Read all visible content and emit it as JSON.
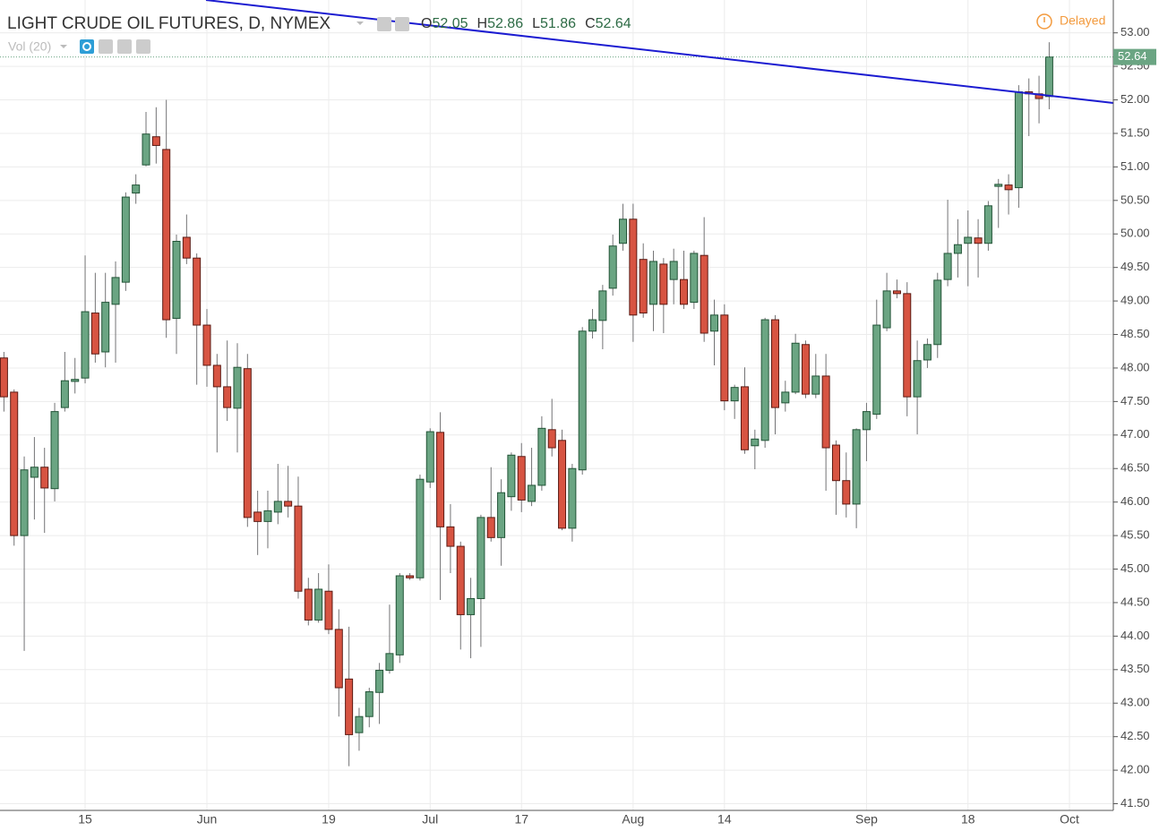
{
  "chart_data": {
    "type": "candlestick",
    "title": "LIGHT CRUDE OIL FUTURES, D, NYMEX",
    "ohlc_labels": [
      "O",
      "H",
      "L",
      "C"
    ],
    "indicator": "Vol (20)",
    "status": "Delayed",
    "categories": [
      null,
      null,
      null,
      null,
      null,
      null,
      null,
      null,
      "15",
      null,
      null,
      null,
      null,
      null,
      null,
      null,
      null,
      null,
      null,
      null,
      "Jun",
      null,
      null,
      null,
      null,
      null,
      null,
      null,
      null,
      null,
      null,
      null,
      "19",
      null,
      null,
      null,
      null,
      null,
      null,
      null,
      null,
      null,
      "Jul",
      null,
      null,
      null,
      null,
      null,
      null,
      null,
      null,
      "17",
      null,
      null,
      null,
      null,
      null,
      null,
      null,
      null,
      null,
      null,
      "Aug",
      null,
      null,
      null,
      null,
      null,
      null,
      null,
      null,
      "14",
      null,
      null,
      null,
      null,
      null,
      null,
      null,
      null,
      null,
      null,
      null,
      null,
      null,
      "Sep",
      null,
      null,
      null,
      null,
      null,
      null,
      null,
      null,
      null,
      "18",
      null,
      null,
      null,
      null,
      null,
      null,
      null,
      null,
      null,
      "Oct"
    ],
    "open": [
      48.15,
      47.64,
      45.5,
      46.37,
      46.52,
      46.2,
      47.41,
      47.8,
      47.85,
      48.82,
      48.24,
      48.95,
      49.28,
      50.61,
      51.03,
      51.45,
      51.26,
      48.74,
      49.95,
      49.64,
      48.64,
      48.04,
      47.72,
      47.4,
      47.99,
      45.85,
      45.71,
      45.85,
      46.01,
      45.94,
      44.7,
      44.24,
      44.67,
      44.1,
      43.36,
      42.56,
      42.8,
      43.16,
      43.49,
      43.72,
      44.9,
      44.87,
      46.3,
      47.04,
      45.63,
      45.34,
      44.32,
      44.56,
      45.77,
      45.47,
      46.08,
      46.68,
      46.01,
      46.25,
      47.08,
      46.92,
      45.61,
      46.48,
      48.55,
      48.71,
      49.19,
      49.86,
      50.22,
      49.62,
      48.95,
      49.55,
      49.32,
      49.32,
      48.98,
      49.68,
      48.55,
      48.79,
      47.51,
      47.72,
      46.84,
      46.92,
      48.72,
      47.48,
      47.64,
      48.35,
      47.61,
      47.88,
      46.85,
      46.32,
      45.97,
      47.08,
      47.31,
      48.6,
      49.15,
      49.11,
      47.57,
      48.12,
      48.35,
      49.32,
      49.71,
      49.86,
      49.94,
      49.86,
      50.71,
      50.73,
      50.69,
      52.12,
      52.09,
      52.05,
      null,
      null
    ],
    "high": [
      48.24,
      47.68,
      46.68,
      46.97,
      46.81,
      47.48,
      48.24,
      48.15,
      49.68,
      49.42,
      49.42,
      49.59,
      50.62,
      50.89,
      51.82,
      51.89,
      52.0,
      49.99,
      50.29,
      49.71,
      48.88,
      48.21,
      48.41,
      48.37,
      48.21,
      46.17,
      46.17,
      46.57,
      46.54,
      46.38,
      44.87,
      44.94,
      45.07,
      44.4,
      44.14,
      42.93,
      43.23,
      43.6,
      44.47,
      44.94,
      44.94,
      46.41,
      47.1,
      47.34,
      45.97,
      45.41,
      44.87,
      45.81,
      46.52,
      46.34,
      46.74,
      46.88,
      46.81,
      47.28,
      47.54,
      47.08,
      46.57,
      48.61,
      48.88,
      49.24,
      49.99,
      50.45,
      50.45,
      49.86,
      49.75,
      49.64,
      49.78,
      49.75,
      49.75,
      50.25,
      49.02,
      48.95,
      47.75,
      48.01,
      47.08,
      48.75,
      48.79,
      47.81,
      48.51,
      48.41,
      48.21,
      48.21,
      46.92,
      46.74,
      47.1,
      47.48,
      49.02,
      49.42,
      49.32,
      49.28,
      48.41,
      48.44,
      49.42,
      50.51,
      50.22,
      50.35,
      50.22,
      50.49,
      50.82,
      50.89,
      52.22,
      52.32,
      52.36,
      52.86,
      null,
      null
    ],
    "low": [
      47.35,
      45.35,
      43.78,
      45.74,
      45.54,
      46.01,
      47.35,
      47.62,
      47.77,
      48.08,
      48.01,
      48.08,
      49.15,
      50.45,
      51.01,
      51.05,
      48.45,
      48.21,
      49.55,
      47.75,
      47.72,
      46.74,
      47.21,
      46.74,
      45.63,
      45.21,
      45.31,
      45.67,
      45.77,
      44.56,
      44.16,
      44.2,
      44.03,
      42.8,
      42.06,
      42.29,
      42.64,
      42.69,
      43.44,
      43.6,
      44.84,
      44.83,
      46.21,
      44.54,
      44.94,
      43.8,
      43.67,
      43.84,
      45.41,
      45.05,
      45.87,
      45.85,
      45.94,
      46.17,
      46.68,
      45.58,
      45.41,
      46.41,
      48.44,
      48.28,
      49.08,
      49.75,
      48.39,
      48.75,
      48.55,
      48.52,
      48.95,
      48.88,
      48.88,
      48.39,
      48.04,
      47.37,
      47.24,
      46.72,
      46.49,
      46.81,
      47.01,
      47.35,
      47.61,
      47.55,
      47.55,
      46.17,
      45.81,
      45.77,
      45.61,
      46.61,
      47.24,
      48.55,
      49.04,
      47.28,
      47.01,
      48.0,
      48.15,
      49.22,
      49.35,
      49.22,
      49.35,
      49.75,
      50.09,
      50.29,
      50.39,
      51.46,
      51.65,
      51.86,
      null,
      null
    ],
    "close": [
      47.57,
      45.5,
      46.48,
      46.52,
      46.21,
      47.35,
      47.81,
      47.83,
      48.84,
      48.21,
      48.98,
      49.35,
      50.55,
      50.73,
      51.49,
      51.32,
      48.72,
      49.89,
      49.64,
      48.64,
      48.04,
      47.72,
      47.41,
      48.01,
      45.77,
      45.71,
      45.87,
      46.01,
      45.94,
      44.67,
      44.24,
      44.7,
      44.1,
      43.23,
      42.53,
      42.8,
      43.17,
      43.49,
      43.74,
      44.9,
      44.87,
      46.34,
      47.05,
      45.63,
      45.34,
      44.32,
      44.56,
      45.77,
      45.47,
      46.14,
      46.7,
      46.03,
      46.25,
      47.1,
      46.81,
      45.61,
      46.5,
      48.55,
      48.72,
      49.15,
      49.82,
      50.22,
      48.79,
      48.82,
      49.59,
      48.95,
      49.59,
      48.95,
      49.71,
      48.52,
      48.79,
      47.51,
      47.71,
      46.78,
      46.94,
      48.72,
      47.41,
      47.64,
      48.37,
      47.61,
      47.88,
      46.81,
      46.32,
      45.97,
      47.08,
      47.35,
      48.64,
      49.15,
      49.11,
      47.57,
      48.11,
      48.35,
      49.31,
      49.71,
      49.84,
      49.95,
      49.86,
      50.42,
      50.74,
      50.66,
      52.12,
      52.09,
      52.02,
      52.64,
      null,
      null
    ],
    "up_color": "#6ba583",
    "down_color": "#d75442",
    "ylim": [
      41.4,
      53.49
    ],
    "yticks": [
      {
        "value": 41.5,
        "label": "41.50"
      },
      {
        "value": 42,
        "label": "42.00"
      },
      {
        "value": 42.5,
        "label": "42.50"
      },
      {
        "value": 43,
        "label": "43.00"
      },
      {
        "value": 43.5,
        "label": "43.50"
      },
      {
        "value": 44,
        "label": "44.00"
      },
      {
        "value": 44.5,
        "label": "44.50"
      },
      {
        "value": 45,
        "label": "45.00"
      },
      {
        "value": 45.5,
        "label": "45.50"
      },
      {
        "value": 46,
        "label": "46.00"
      },
      {
        "value": 46.5,
        "label": "46.50"
      },
      {
        "value": 47,
        "label": "47.00"
      },
      {
        "value": 47.5,
        "label": "47.50"
      },
      {
        "value": 48,
        "label": "48.00"
      },
      {
        "value": 48.5,
        "label": "48.50"
      },
      {
        "value": 49,
        "label": "49.00"
      },
      {
        "value": 49.5,
        "label": "49.50"
      },
      {
        "value": 50,
        "label": "50.00"
      },
      {
        "value": 50.5,
        "label": "50.50"
      },
      {
        "value": 51,
        "label": "51.00"
      },
      {
        "value": 51.5,
        "label": "51.50"
      },
      {
        "value": 52,
        "label": "52.00"
      },
      {
        "value": 52.5,
        "label": "52.50"
      },
      {
        "value": 53,
        "label": "53.00"
      }
    ],
    "grid": true
  }
}
